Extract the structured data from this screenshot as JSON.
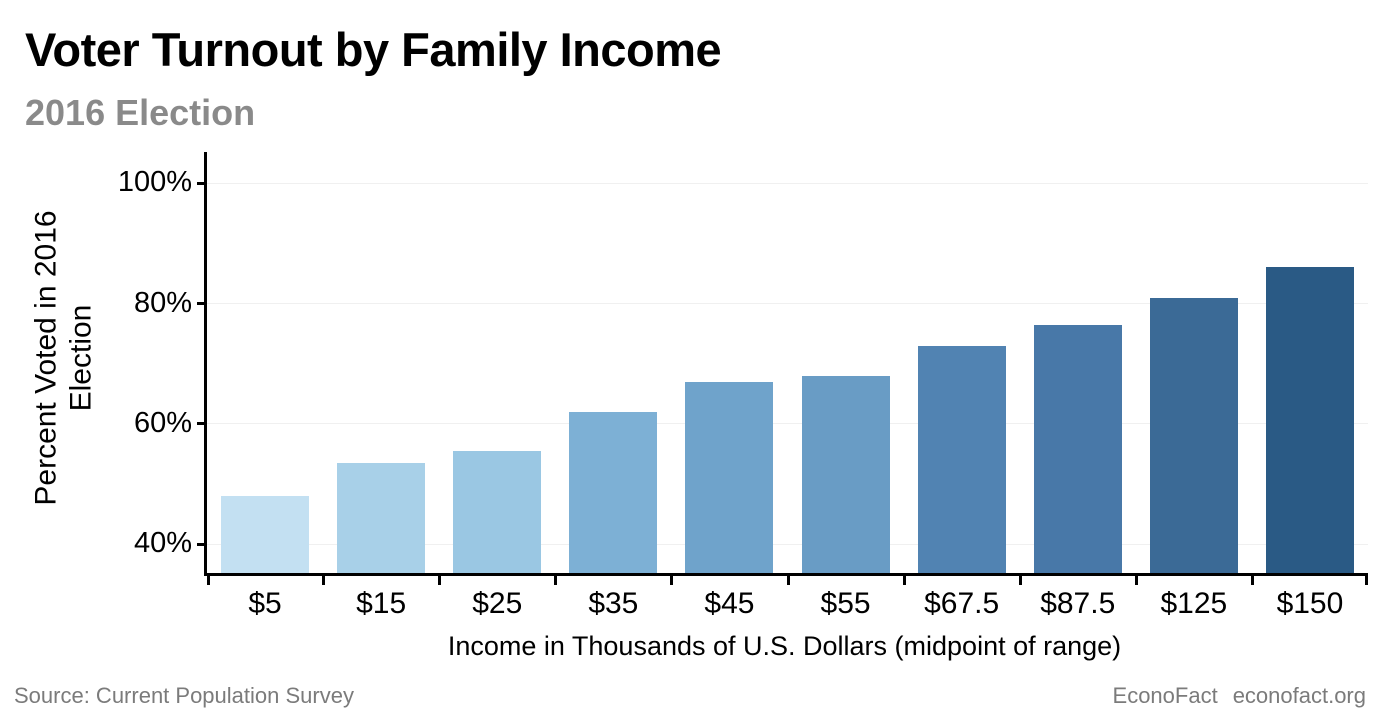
{
  "header": {
    "title": "Voter Turnout by Family Income",
    "subtitle": "2016 Election"
  },
  "chart_data": {
    "type": "bar",
    "title": "Voter Turnout by Family Income",
    "subtitle": "2016 Election",
    "categories": [
      "$5",
      "$15",
      "$25",
      "$35",
      "$45",
      "$55",
      "$67.5",
      "$87.5",
      "$125",
      "$150"
    ],
    "values": [
      48,
      53.5,
      55.5,
      62,
      67,
      68,
      73,
      76.5,
      81,
      86
    ],
    "bar_colors": [
      "#c3e0f2",
      "#a8d0e8",
      "#9ac7e3",
      "#7db0d5",
      "#6fa3cb",
      "#699cc5",
      "#5183b2",
      "#4878a8",
      "#3b6a96",
      "#2a5a85"
    ],
    "xlabel": "Income in Thousands of U.S. Dollars (midpoint of range)",
    "ylabel": "Percent Voted in 2016\nElection",
    "yticks": [
      40,
      60,
      80,
      100
    ],
    "ytick_suffix": "%",
    "ylim": [
      35.2,
      105.2
    ],
    "grid": "horizontal-faint",
    "legend": "none",
    "axis_color": "#000000",
    "gridline_color": "#f0f0f0"
  },
  "footer": {
    "source": "Source: Current Population Survey",
    "brand": "EconoFact",
    "site": "econofact.org"
  }
}
